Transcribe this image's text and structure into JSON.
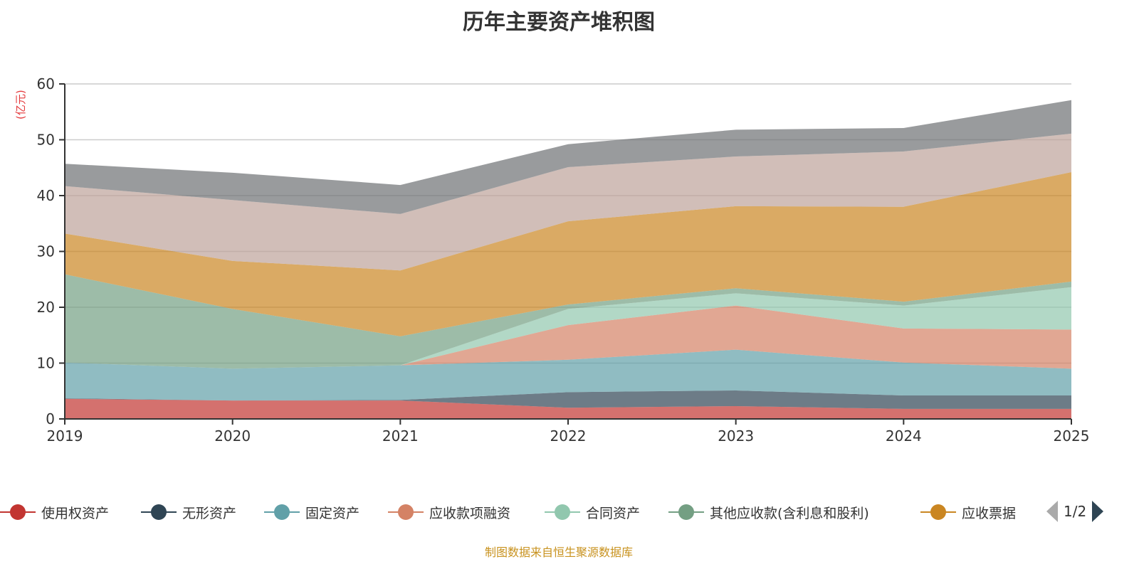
{
  "chart_data": {
    "type": "area",
    "stacked": true,
    "title": "历年主要资产堆积图",
    "ylabel": "(亿元)",
    "xlabel": "",
    "ylim": [
      0,
      60
    ],
    "yticks": [
      0,
      10,
      20,
      30,
      40,
      50,
      60
    ],
    "categories": [
      "2019",
      "2020",
      "2021",
      "2022",
      "2023",
      "2024",
      "2025"
    ],
    "grid": true,
    "legend_position": "bottom",
    "series": [
      {
        "name": "使用权资产",
        "color": "#c23531",
        "values": [
          3.6,
          3.3,
          3.3,
          2.0,
          2.3,
          1.8,
          1.8
        ]
      },
      {
        "name": "无形资产",
        "color": "#2f4554",
        "values": [
          0.1,
          0.0,
          0.1,
          2.8,
          2.8,
          2.4,
          2.4
        ]
      },
      {
        "name": "固定资产",
        "color": "#61a0a8",
        "values": [
          6.4,
          5.7,
          6.2,
          5.8,
          7.3,
          5.9,
          4.8
        ]
      },
      {
        "name": "应收款项融资",
        "color": "#d48265",
        "values": [
          0.0,
          0.0,
          0.0,
          6.2,
          7.9,
          6.1,
          7.0
        ]
      },
      {
        "name": "合同资产",
        "color": "#91c7ae",
        "values": [
          0.0,
          0.0,
          0.0,
          2.9,
          2.2,
          4.1,
          7.6
        ]
      },
      {
        "name": "其他应收款(含利息和股利)",
        "color": "#749f83",
        "values": [
          15.8,
          10.7,
          5.2,
          0.8,
          0.9,
          0.7,
          1.0
        ]
      },
      {
        "name": "应收票据",
        "color": "#ca8622",
        "values": [
          7.3,
          8.6,
          11.8,
          14.9,
          14.7,
          17.0,
          19.6
        ]
      },
      {
        "name": "",
        "color": "#bda29a",
        "values": [
          8.5,
          10.9,
          10.1,
          9.7,
          8.9,
          9.9,
          6.9
        ]
      },
      {
        "name": "",
        "color": "#6e7074",
        "values": [
          4.0,
          4.9,
          5.2,
          4.1,
          4.8,
          4.2,
          6.0
        ]
      }
    ]
  },
  "legend": {
    "page": "1/2",
    "visible_count": 7
  },
  "source": "制图数据来自恒生聚源数据库"
}
